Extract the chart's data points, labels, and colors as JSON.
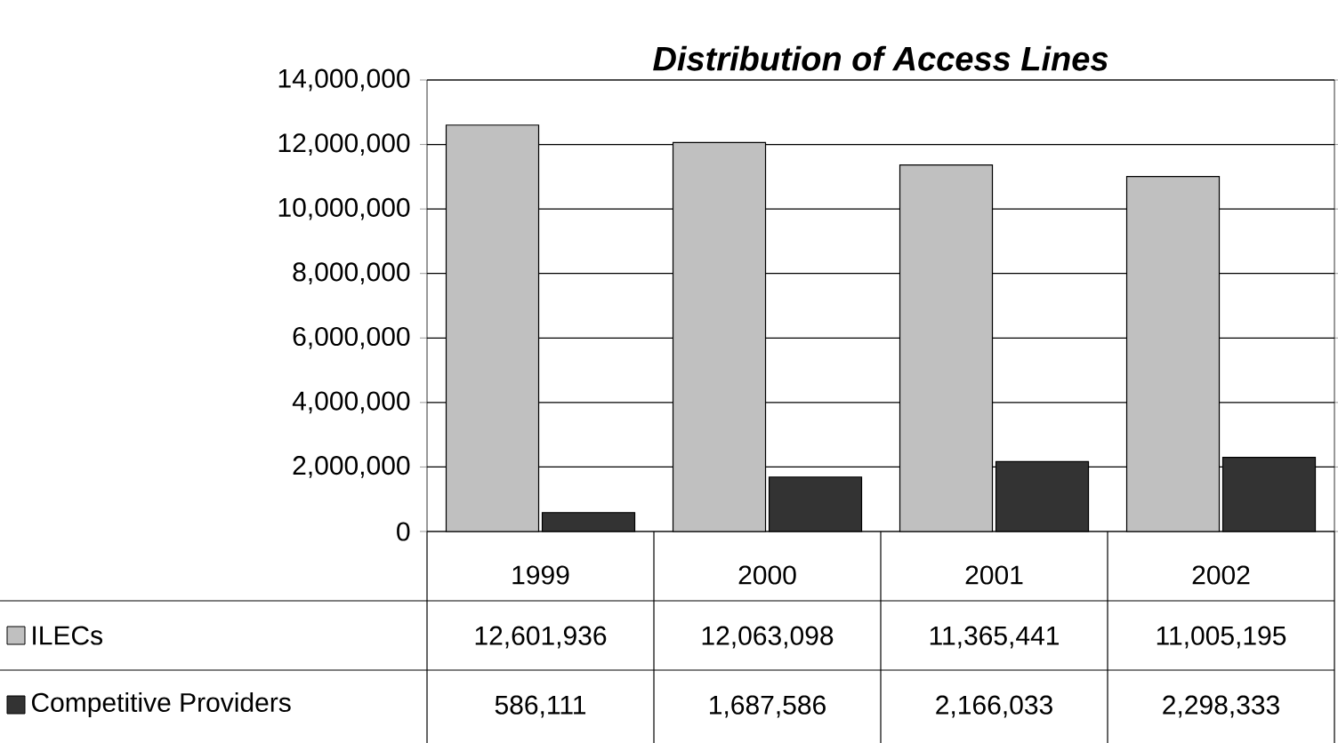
{
  "chart_data": {
    "type": "bar",
    "title": "Distribution of Access Lines",
    "categories": [
      "1999",
      "2000",
      "2001",
      "2002"
    ],
    "series": [
      {
        "name": "ILECs",
        "color": "#c0c0c0",
        "values": [
          12601936,
          12063098,
          11365441,
          11005195
        ],
        "value_labels": [
          "12,601,936",
          "12,063,098",
          "11,365,441",
          "11,005,195"
        ]
      },
      {
        "name": "Competitive Providers",
        "color": "#333333",
        "values": [
          586111,
          1687586,
          2166033,
          2298333
        ],
        "value_labels": [
          "586,111",
          "1,687,586",
          "2,166,033",
          "2,298,333"
        ]
      }
    ],
    "ylim": [
      0,
      14000000
    ],
    "yticks": [
      {
        "value": 0,
        "label": "0"
      },
      {
        "value": 2000000,
        "label": "2,000,000"
      },
      {
        "value": 4000000,
        "label": "4,000,000"
      },
      {
        "value": 6000000,
        "label": "6,000,000"
      },
      {
        "value": 8000000,
        "label": "8,000,000"
      },
      {
        "value": 10000000,
        "label": "10,000,000"
      },
      {
        "value": 12000000,
        "label": "12,000,000"
      },
      {
        "value": 14000000,
        "label": "14,000,000"
      }
    ],
    "grid": "y",
    "legend": "bottom"
  }
}
